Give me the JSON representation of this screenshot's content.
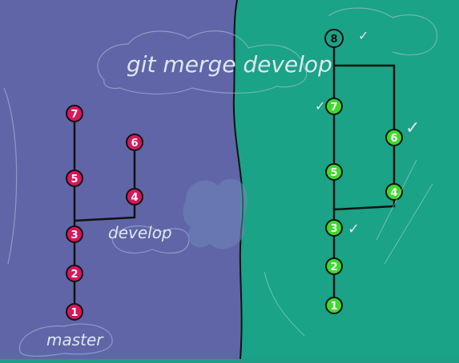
{
  "caption": "git merge develop",
  "left_panel": {
    "branch_master_label": "master",
    "branch_develop_label": "develop",
    "commits": {
      "c1": "1",
      "c2": "2",
      "c3": "3",
      "c4": "4",
      "c5": "5",
      "c6": "6",
      "c7": "7"
    }
  },
  "right_panel": {
    "merge_commit": "8",
    "commits": {
      "c1": "1",
      "c2": "2",
      "c3": "3",
      "c4": "4",
      "c5": "5",
      "c6": "6",
      "c7": "7"
    },
    "check_mark": "✓"
  },
  "colors": {
    "left_background": "#6065a8",
    "right_background": "#1aa386",
    "left_commit_fill": "#d9175a",
    "right_commit_fill": "#3fd92e",
    "line": "#111111",
    "chalk": "#dfe6ee"
  }
}
